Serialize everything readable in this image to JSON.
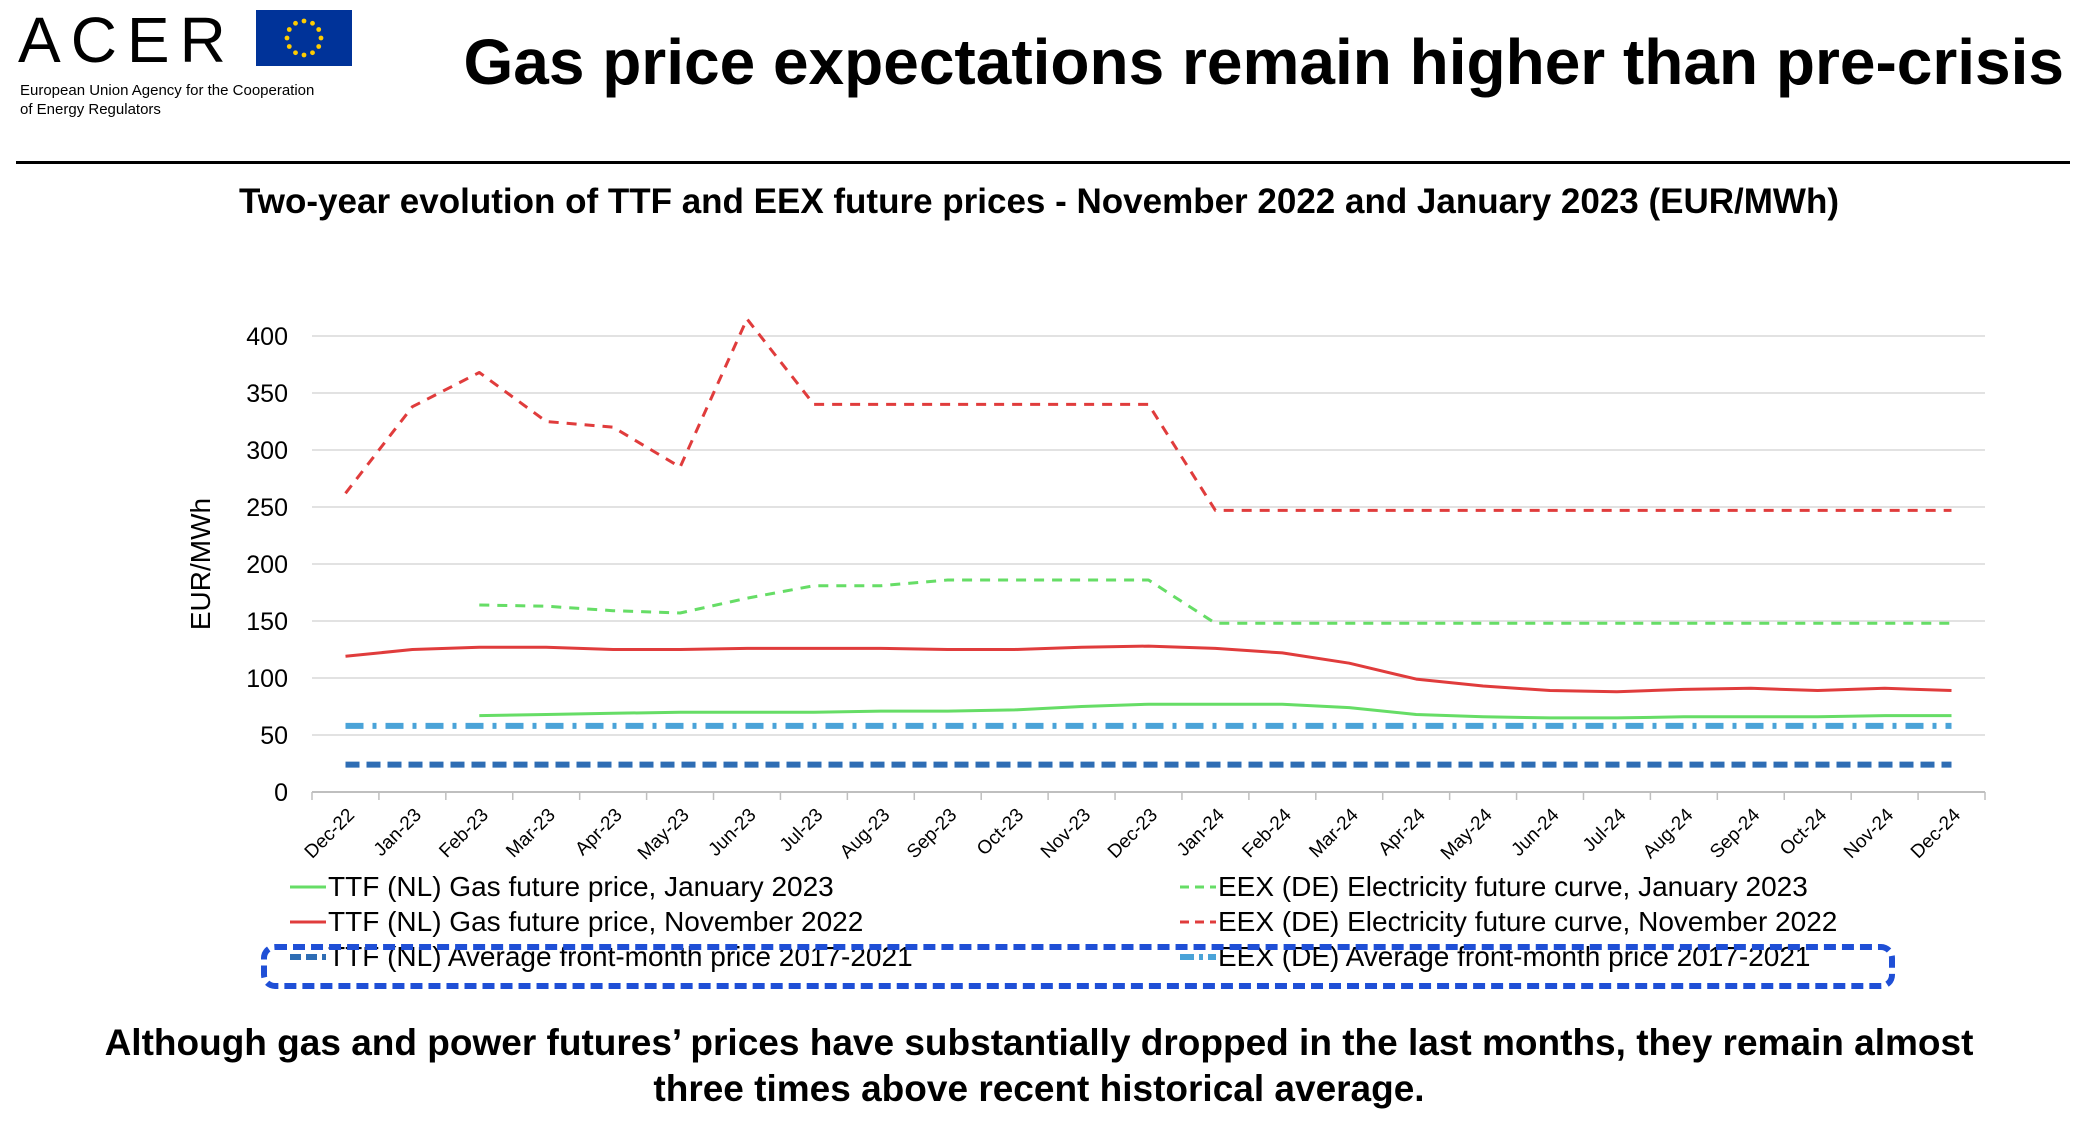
{
  "header": {
    "logo_text": "ACER",
    "logo_subtitle_line1": "European Union Agency for the Cooperation",
    "logo_subtitle_line2": "of Energy Regulators",
    "headline": "Gas price expectations remain higher than pre-crisis"
  },
  "footnote": {
    "line1": "Although gas and power futures’ prices have substantially dropped in the last months, they remain almost",
    "line2": "three times above recent historical average."
  },
  "colors": {
    "eu_blue": "#003399",
    "eu_gold": "#ffcc00",
    "highlight_box": "#1f4fd6"
  },
  "chart_data": {
    "type": "line",
    "title": "Two-year evolution of TTF and EEX future prices - November 2022 and January 2023 (EUR/MWh)",
    "ylabel": "EUR/MWh",
    "xlabel": "",
    "ylim": [
      0,
      400
    ],
    "yticks": [
      0,
      50,
      100,
      150,
      200,
      250,
      300,
      350,
      400
    ],
    "grid": "horizontal",
    "legend_position": "bottom",
    "categories": [
      "Dec-22",
      "Jan-23",
      "Feb-23",
      "Mar-23",
      "Apr-23",
      "May-23",
      "Jun-23",
      "Jul-23",
      "Aug-23",
      "Sep-23",
      "Oct-23",
      "Nov-23",
      "Dec-23",
      "Jan-24",
      "Feb-24",
      "Mar-24",
      "Apr-24",
      "May-24",
      "Jun-24",
      "Jul-24",
      "Aug-24",
      "Sep-24",
      "Oct-24",
      "Nov-24",
      "Dec-24"
    ],
    "series": [
      {
        "name": "TTF (NL) Gas future price, January 2023",
        "color": "#66dd66",
        "dash": "solid",
        "values": [
          null,
          null,
          67,
          68,
          69,
          70,
          70,
          70,
          71,
          71,
          72,
          75,
          77,
          77,
          77,
          74,
          68,
          66,
          65,
          65,
          66,
          66,
          66,
          67,
          67
        ]
      },
      {
        "name": "EEX (DE) Electricity future curve, January 2023",
        "color": "#66dd66",
        "dash": "dash",
        "values": [
          null,
          null,
          164,
          163,
          159,
          157,
          170,
          181,
          181,
          186,
          186,
          186,
          186,
          148,
          148,
          148,
          148,
          148,
          148,
          148,
          148,
          148,
          148,
          148,
          148
        ]
      },
      {
        "name": "TTF (NL) Gas future price, November 2022",
        "color": "#e03c3c",
        "dash": "solid",
        "values": [
          119,
          125,
          127,
          127,
          125,
          125,
          126,
          126,
          126,
          125,
          125,
          127,
          128,
          126,
          122,
          113,
          99,
          93,
          89,
          88,
          90,
          91,
          89,
          91,
          89
        ]
      },
      {
        "name": "EEX (DE) Electricity future curve, November 2022",
        "color": "#e03c3c",
        "dash": "dash",
        "values": [
          262,
          338,
          368,
          325,
          320,
          285,
          415,
          340,
          340,
          340,
          340,
          340,
          340,
          247,
          247,
          247,
          247,
          247,
          247,
          247,
          247,
          247,
          247,
          247,
          247
        ]
      },
      {
        "name": "TTF (NL) Average front-month price 2017-2021",
        "color": "#2e6db4",
        "dash": "bold-dash",
        "values": [
          24,
          24,
          24,
          24,
          24,
          24,
          24,
          24,
          24,
          24,
          24,
          24,
          24,
          24,
          24,
          24,
          24,
          24,
          24,
          24,
          24,
          24,
          24,
          24,
          24
        ]
      },
      {
        "name": "EEX (DE) Average front-month price 2017-2021",
        "color": "#4aa3d8",
        "dash": "dash-dot",
        "values": [
          58,
          58,
          58,
          58,
          58,
          58,
          58,
          58,
          58,
          58,
          58,
          58,
          58,
          58,
          58,
          58,
          58,
          58,
          58,
          58,
          58,
          58,
          58,
          58,
          58
        ]
      }
    ]
  }
}
